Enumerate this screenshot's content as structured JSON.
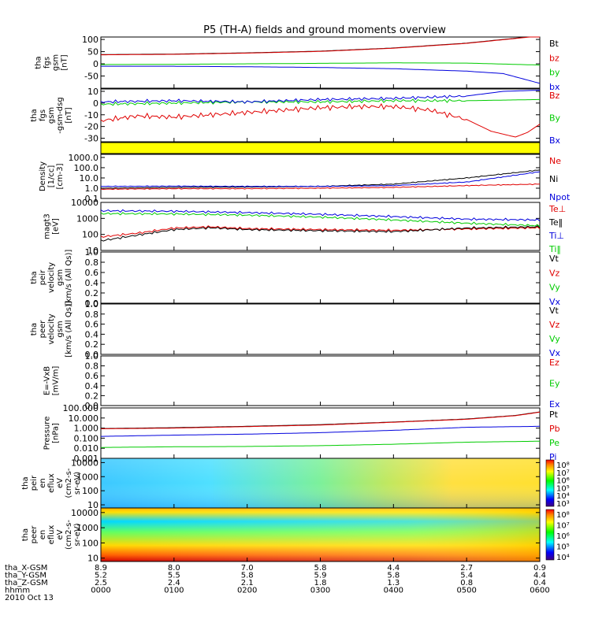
{
  "title": "P5 (TH-A) fields and ground moments overview",
  "colors": {
    "black": "#000000",
    "red": "#e00000",
    "green": "#00cc00",
    "blue": "#0000dd",
    "yellow": "#ffff00"
  },
  "chart_data": [
    {
      "type": "line",
      "ylabel": [
        "tha",
        "fgs",
        "gsm",
        "[nT]"
      ],
      "ylim": [
        -100,
        110
      ],
      "yticks": [
        100,
        50,
        0,
        -50
      ],
      "legend": [
        {
          "name": "Bt",
          "color": "black"
        },
        {
          "name": "bz",
          "color": "red"
        },
        {
          "name": "by",
          "color": "green"
        },
        {
          "name": "bx",
          "color": "blue"
        }
      ],
      "series": [
        {
          "name": "Bt",
          "color": "black",
          "x": [
            0,
            60,
            120,
            180,
            240,
            300,
            360
          ],
          "y": [
            38,
            40,
            45,
            52,
            65,
            85,
            115
          ]
        },
        {
          "name": "bz",
          "color": "red",
          "x": [
            0,
            60,
            120,
            180,
            240,
            300,
            360
          ],
          "y": [
            37,
            39,
            44,
            51,
            64,
            84,
            114
          ]
        },
        {
          "name": "by",
          "color": "green",
          "x": [
            0,
            60,
            120,
            180,
            240,
            300,
            360
          ],
          "y": [
            -3,
            -2,
            0,
            2,
            4,
            3,
            -5
          ]
        },
        {
          "name": "bx",
          "color": "blue",
          "x": [
            0,
            60,
            120,
            180,
            240,
            300,
            330,
            360
          ],
          "y": [
            -10,
            -10,
            -12,
            -15,
            -20,
            -30,
            -40,
            -80
          ]
        }
      ]
    },
    {
      "type": "line",
      "ylabel": [
        "tha",
        "fgs",
        "gsm",
        "-gsm-dsg",
        "[nT]"
      ],
      "ylim": [
        -33,
        12
      ],
      "yticks": [
        10,
        0,
        -10,
        -20,
        -30
      ],
      "legend": [
        {
          "name": "Bz",
          "color": "red"
        },
        {
          "name": "By",
          "color": "green"
        },
        {
          "name": "Bx",
          "color": "blue"
        }
      ],
      "series": [
        {
          "name": "Bz",
          "color": "red",
          "x": [
            0,
            30,
            60,
            90,
            120,
            150,
            180,
            210,
            240,
            270,
            300,
            320,
            340,
            350,
            360
          ],
          "y": [
            -15,
            -11,
            -12,
            -10,
            -8,
            -6,
            -4,
            -3,
            -3,
            -6,
            -14,
            -24,
            -29,
            -25,
            -18
          ]
        },
        {
          "name": "By",
          "color": "green",
          "x": [
            0,
            60,
            120,
            180,
            240,
            300,
            360
          ],
          "y": [
            -1,
            0,
            1,
            1,
            2,
            2,
            3
          ]
        },
        {
          "name": "Bx",
          "color": "blue",
          "x": [
            0,
            60,
            120,
            180,
            240,
            300,
            330,
            360
          ],
          "y": [
            1,
            2,
            1,
            3,
            4,
            6,
            10,
            11
          ]
        }
      ]
    },
    {
      "type": "line",
      "ylabel": [
        "Density",
        "[1/cc]",
        "[cm-3]"
      ],
      "ylim_log": [
        0.1,
        2000
      ],
      "yticks": [
        "1000.0",
        "100.0",
        "10.0",
        "1.0",
        "0.1"
      ],
      "legend": [
        {
          "name": "Ne",
          "color": "red"
        },
        {
          "name": "Ni",
          "color": "black"
        },
        {
          "name": "Npot",
          "color": "blue"
        }
      ],
      "series": [
        {
          "name": "Ne",
          "color": "red",
          "x": [
            0,
            60,
            120,
            180,
            240,
            300,
            360
          ],
          "y": [
            0.8,
            0.9,
            0.9,
            1.0,
            1.2,
            1.8,
            2.5
          ]
        },
        {
          "name": "Ni",
          "color": "black",
          "x": [
            0,
            60,
            120,
            180,
            240,
            300,
            360
          ],
          "y": [
            1.0,
            1.2,
            1.3,
            1.5,
            2.5,
            10,
            60
          ]
        },
        {
          "name": "Npot",
          "color": "blue",
          "x": [
            0,
            60,
            120,
            180,
            240,
            300,
            360
          ],
          "y": [
            1.5,
            1.6,
            1.5,
            1.5,
            1.8,
            4,
            40
          ]
        }
      ]
    },
    {
      "type": "line",
      "ylabel": [
        "magt3",
        "[eV]"
      ],
      "ylim_log": [
        10,
        10000
      ],
      "yticks": [
        "10000",
        "1000",
        "100",
        "10"
      ],
      "legend": [
        {
          "name": "Te⊥",
          "color": "red"
        },
        {
          "name": "Te‖",
          "color": "black"
        },
        {
          "name": "Ti⊥",
          "color": "blue"
        },
        {
          "name": "Ti‖",
          "color": "green"
        }
      ],
      "series": [
        {
          "name": "Te⊥",
          "color": "red",
          "x": [
            0,
            30,
            60,
            90,
            120,
            180,
            240,
            300,
            360
          ],
          "y": [
            70,
            120,
            250,
            300,
            230,
            200,
            180,
            220,
            260
          ]
        },
        {
          "name": "Te‖",
          "color": "black",
          "x": [
            0,
            30,
            60,
            90,
            120,
            180,
            240,
            300,
            360
          ],
          "y": [
            40,
            90,
            200,
            260,
            200,
            170,
            150,
            250,
            300
          ]
        },
        {
          "name": "Ti⊥",
          "color": "blue",
          "x": [
            0,
            60,
            120,
            180,
            240,
            300,
            360
          ],
          "y": [
            3000,
            2800,
            2300,
            1800,
            1300,
            900,
            800
          ]
        },
        {
          "name": "Ti‖",
          "color": "green",
          "x": [
            0,
            60,
            120,
            180,
            240,
            300,
            360
          ],
          "y": [
            2000,
            1900,
            1600,
            1200,
            800,
            500,
            350
          ]
        }
      ]
    },
    {
      "type": "line",
      "ylabel": [
        "tha",
        "peir",
        "velocity",
        "gsm",
        "[km/s (All Qs)]"
      ],
      "ylim": [
        0,
        1
      ],
      "yticks": [
        "1.0",
        "0.8",
        "0.6",
        "0.4",
        "0.2",
        "0.0"
      ],
      "legend": [
        {
          "name": "Vt",
          "color": "black"
        },
        {
          "name": "Vz",
          "color": "red"
        },
        {
          "name": "Vy",
          "color": "green"
        },
        {
          "name": "Vx",
          "color": "blue"
        }
      ],
      "series": []
    },
    {
      "type": "line",
      "ylabel": [
        "tha",
        "peer",
        "velocity",
        "gsm",
        "[km/s (All Qs)]"
      ],
      "ylim": [
        0,
        1
      ],
      "yticks": [
        "1.0",
        "0.8",
        "0.6",
        "0.4",
        "0.2",
        "0.0"
      ],
      "legend": [
        {
          "name": "Vt",
          "color": "black"
        },
        {
          "name": "Vz",
          "color": "red"
        },
        {
          "name": "Vy",
          "color": "green"
        },
        {
          "name": "Vx",
          "color": "blue"
        }
      ],
      "series": []
    },
    {
      "type": "line",
      "ylabel": [
        "E=-VxB",
        "[mV/m]"
      ],
      "ylim": [
        0,
        1
      ],
      "yticks": [
        "1.0",
        "0.8",
        "0.6",
        "0.4",
        "0.2",
        "0.0"
      ],
      "legend": [
        {
          "name": "Ez",
          "color": "red"
        },
        {
          "name": "Ey",
          "color": "green"
        },
        {
          "name": "Ex",
          "color": "blue"
        }
      ],
      "series": []
    },
    {
      "type": "line",
      "ylabel": [
        "Pressure",
        "[nPa]"
      ],
      "ylim_log": [
        0.001,
        100
      ],
      "yticks": [
        "100.000",
        "10.000",
        "1.000",
        "0.100",
        "0.010",
        "0.001"
      ],
      "legend": [
        {
          "name": "Pt",
          "color": "black"
        },
        {
          "name": "Pb",
          "color": "red"
        },
        {
          "name": "Pe",
          "color": "green"
        },
        {
          "name": "Pi",
          "color": "blue"
        }
      ],
      "series": [
        {
          "name": "Pt",
          "color": "black",
          "x": [
            0,
            60,
            120,
            180,
            240,
            300,
            340,
            360
          ],
          "y": [
            0.9,
            1.1,
            1.5,
            2.2,
            4,
            8,
            18,
            40
          ]
        },
        {
          "name": "Pb",
          "color": "red",
          "x": [
            0,
            60,
            120,
            180,
            240,
            300,
            340,
            360
          ],
          "y": [
            0.85,
            1.0,
            1.4,
            2.0,
            3.8,
            7.5,
            17,
            38
          ]
        },
        {
          "name": "Pe",
          "color": "green",
          "x": [
            0,
            60,
            120,
            180,
            240,
            300,
            360
          ],
          "y": [
            0.012,
            0.014,
            0.015,
            0.018,
            0.025,
            0.04,
            0.05
          ]
        },
        {
          "name": "Pi",
          "color": "blue",
          "x": [
            0,
            60,
            120,
            180,
            240,
            300,
            360
          ],
          "y": [
            0.15,
            0.2,
            0.25,
            0.35,
            0.6,
            1.2,
            1.5
          ]
        }
      ]
    },
    {
      "type": "heatmap",
      "ylabel": [
        "tha",
        "peir",
        "en",
        "eflux",
        "eV",
        "(cm2-s-",
        "sr-eV)"
      ],
      "yticks": [
        "10000",
        "1000",
        "100",
        "10"
      ],
      "colorbar_ticks": [
        "10⁸",
        "10⁷",
        "10⁶",
        "10⁵",
        "10⁴",
        "10³"
      ]
    },
    {
      "type": "heatmap",
      "ylabel": [
        "tha",
        "peer",
        "en",
        "eflux",
        "eV",
        "(cm2-s-",
        "sr-eV)"
      ],
      "yticks": [
        "10000",
        "1000",
        "100",
        "10"
      ],
      "colorbar_ticks": [
        "10⁸",
        "10⁷",
        "10⁶",
        "10⁵",
        "10⁴"
      ]
    }
  ],
  "xaxis": {
    "ticks_minutes": [
      0,
      60,
      120,
      180,
      240,
      300,
      360
    ],
    "rows": [
      {
        "label": "tha_X-GSM",
        "values": [
          "8.9",
          "8.0",
          "7.0",
          "5.8",
          "4.4",
          "2.7",
          "0.9"
        ]
      },
      {
        "label": "tha_Y-GSM",
        "values": [
          "5.2",
          "5.5",
          "5.8",
          "5.9",
          "5.8",
          "5.4",
          "4.4"
        ]
      },
      {
        "label": "tha_Z-GSM",
        "values": [
          "2.5",
          "2.4",
          "2.1",
          "1.8",
          "1.3",
          "0.8",
          "0.4"
        ]
      },
      {
        "label": "hhmm",
        "values": [
          "0000",
          "0100",
          "0200",
          "0300",
          "0400",
          "0500",
          "0600"
        ]
      }
    ],
    "date": "2010 Oct 13"
  }
}
